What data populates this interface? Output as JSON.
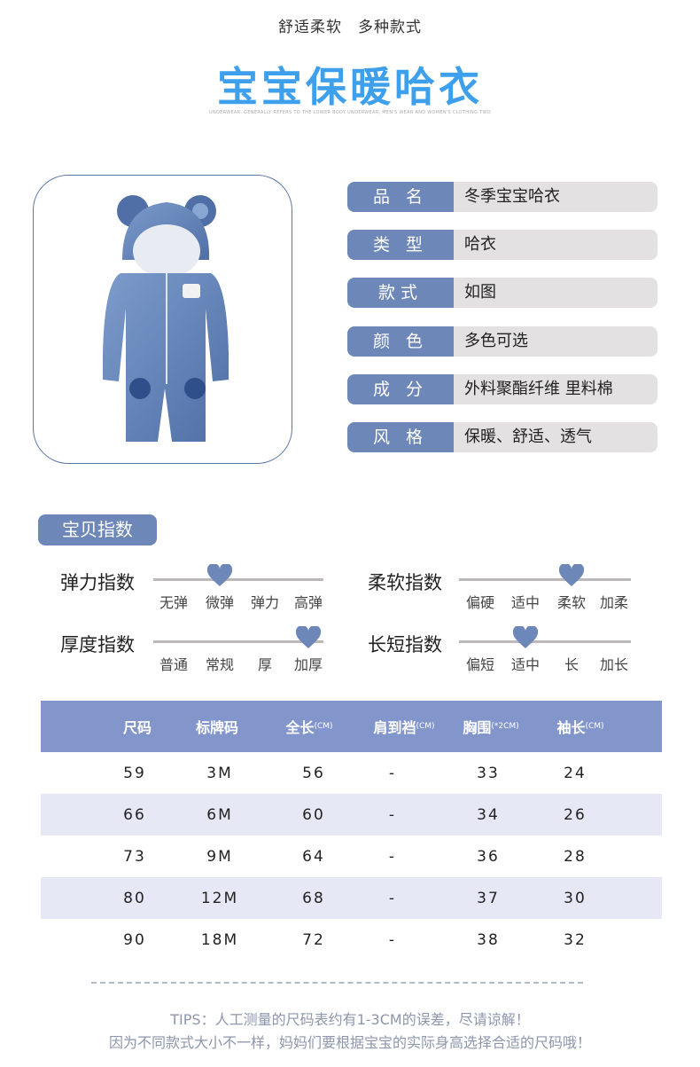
{
  "header": {
    "subtitle": "舒适柔软　多种款式",
    "title": "宝宝保暖哈衣",
    "english": "UNDERWEAR, GENERALLY REFERS TO THE LOWER BODY UNDERWEAR, MEN'S WEAR AND WOMEN'S CLOTHING TWO"
  },
  "product_image": {
    "alt_icon": "blue-bear-ear-hooded-romper"
  },
  "info": [
    {
      "label": "品 名",
      "value": "冬季宝宝哈衣"
    },
    {
      "label": "类 型",
      "value": "哈衣"
    },
    {
      "label": "款式",
      "value": "如图"
    },
    {
      "label": "颜 色",
      "value": "多色可选"
    },
    {
      "label": "成 分",
      "value": "外料聚酯纤维 里料棉"
    },
    {
      "label": "风 格",
      "value": "保暖、舒适、透气"
    }
  ],
  "index_section": {
    "title": "宝贝指数",
    "indices": [
      {
        "name": "弹力指数",
        "levels": [
          "无弹",
          "微弹",
          "弹力",
          "高弹"
        ],
        "selected": 1
      },
      {
        "name": "柔软指数",
        "levels": [
          "偏硬",
          "适中",
          "柔软",
          "加柔"
        ],
        "selected": 2
      },
      {
        "name": "厚度指数",
        "levels": [
          "普通",
          "常规",
          "厚",
          "加厚"
        ],
        "selected": 3
      },
      {
        "name": "长短指数",
        "levels": [
          "偏短",
          "适中",
          "长",
          "加长"
        ],
        "selected": 1
      }
    ]
  },
  "size_table": {
    "headers": [
      {
        "label": "尺码",
        "unit": ""
      },
      {
        "label": "标牌码",
        "unit": ""
      },
      {
        "label": "全长",
        "unit": "(CM)"
      },
      {
        "label": "肩到裆",
        "unit": "(CM)"
      },
      {
        "label": "胸围",
        "unit": "(*2CM)"
      },
      {
        "label": "袖长",
        "unit": "(CM)"
      }
    ],
    "rows": [
      [
        "59",
        "3M",
        "56",
        "-",
        "33",
        "24"
      ],
      [
        "66",
        "6M",
        "60",
        "-",
        "34",
        "26"
      ],
      [
        "73",
        "9M",
        "64",
        "-",
        "36",
        "28"
      ],
      [
        "80",
        "12M",
        "68",
        "-",
        "37",
        "30"
      ],
      [
        "90",
        "18M",
        "72",
        "-",
        "38",
        "32"
      ]
    ]
  },
  "tips": {
    "line1": "TIPS：人工测量的尺码表约有1-3CM的误差，尽请谅解！",
    "line2": "因为不同款式大小不一样，妈妈们要根据宝宝的实际身高选择合适的尺码哦！"
  },
  "colors": {
    "accent": "#6d87b8",
    "title": "#3ea0ec",
    "table_header": "#8396cc",
    "row_alt": "#e6e9f5"
  }
}
